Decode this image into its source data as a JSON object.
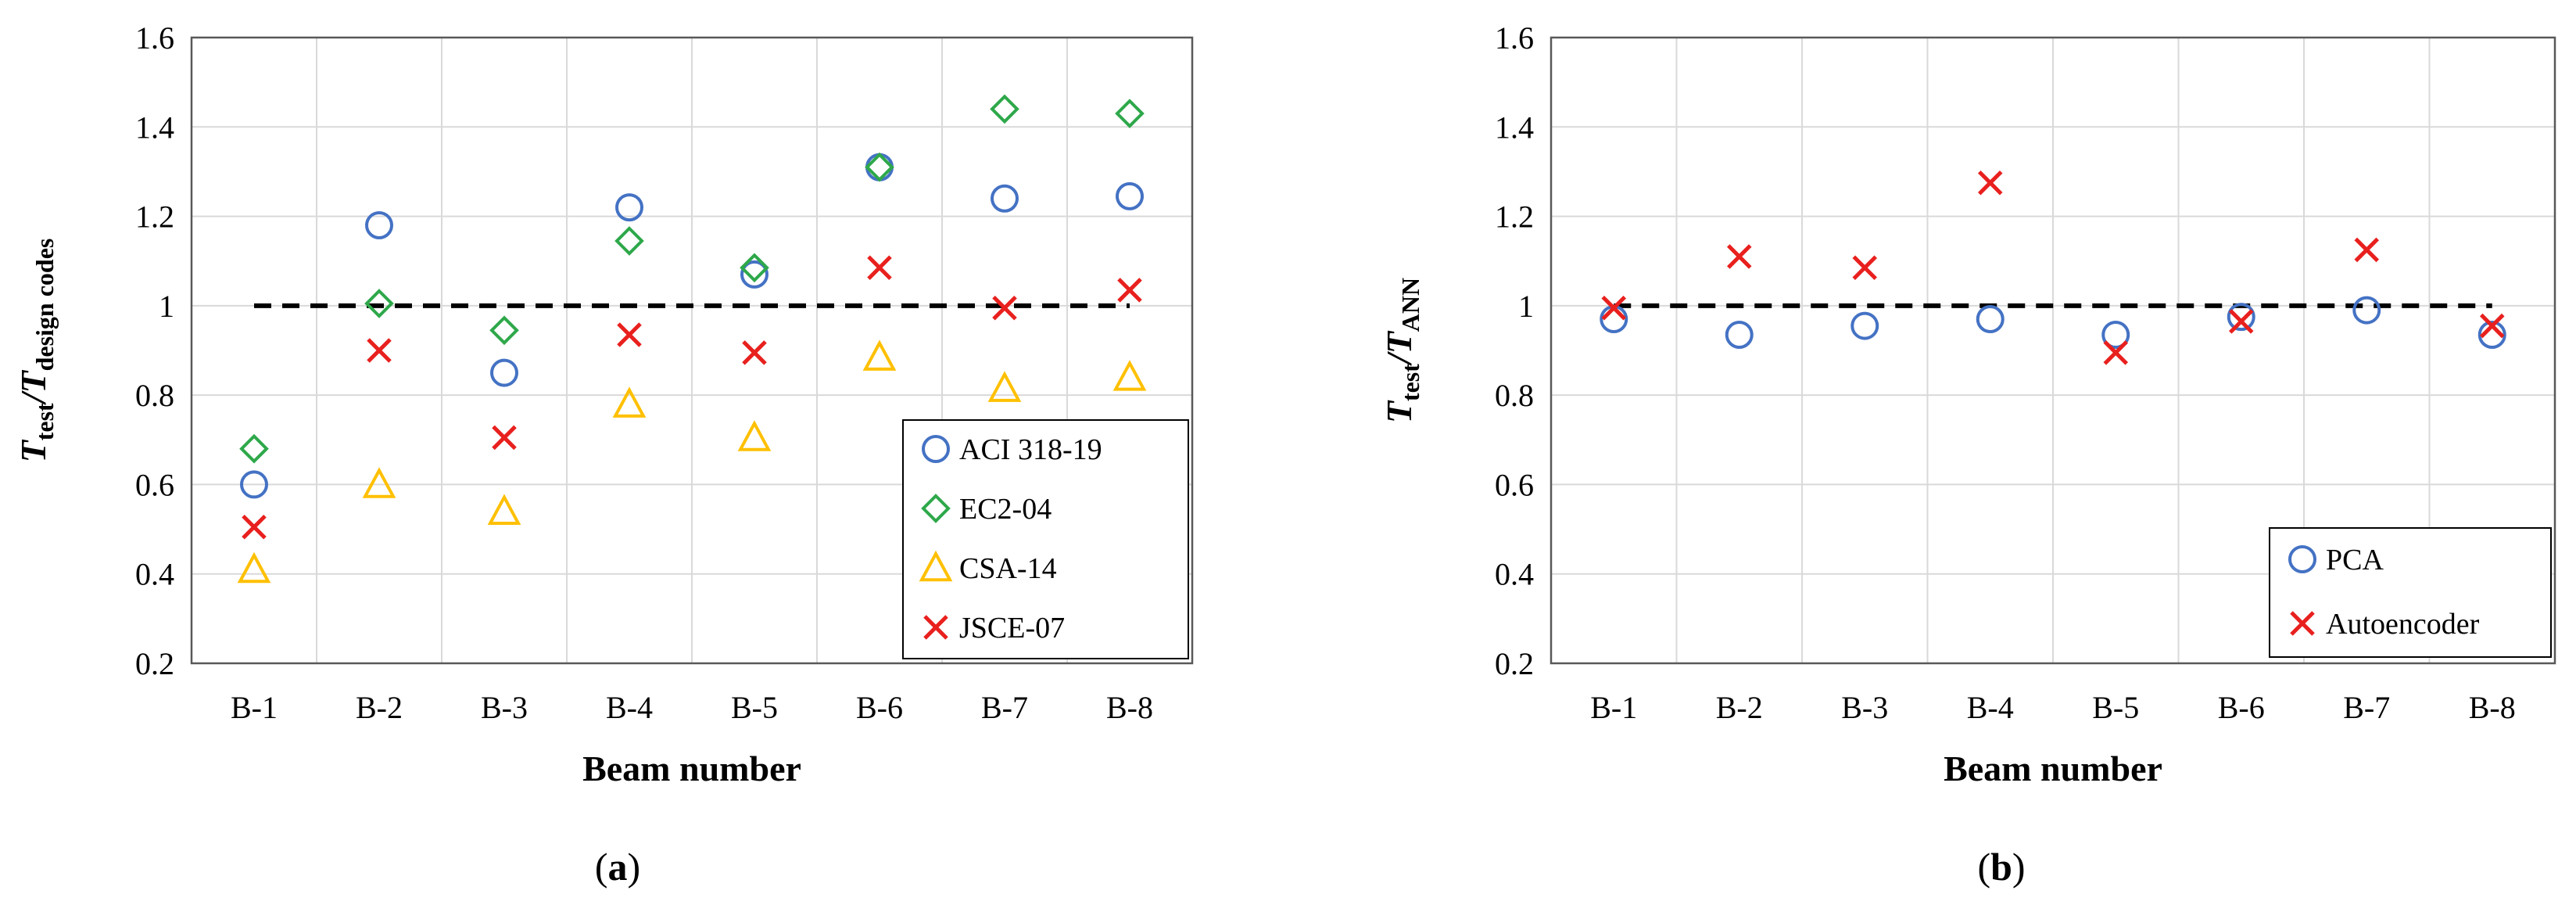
{
  "chart_data": [
    {
      "type": "scatter",
      "panel_label": {
        "open": "(",
        "letter": "a",
        "close": ")"
      },
      "xlabel": "Beam number",
      "ylabel": {
        "main": "T",
        "sub1": "test",
        "slash": "/",
        "main2": "T",
        "sub2": "design codes"
      },
      "categories": [
        "B-1",
        "B-2",
        "B-3",
        "B-4",
        "B-5",
        "B-6",
        "B-7",
        "B-8"
      ],
      "ylim": [
        0.2,
        1.6
      ],
      "yticks": [
        "0.2",
        "0.4",
        "0.6",
        "0.8",
        "1",
        "1.2",
        "1.4",
        "1.6"
      ],
      "grid": true,
      "reference_line": {
        "y": 1.0,
        "style": "dashed",
        "x_from": "B-1",
        "x_to": "B-8"
      },
      "legend_position": "bottom-right",
      "series": [
        {
          "name": "ACI 318-19",
          "marker": "circle",
          "color": "#4472C4",
          "values": [
            0.6,
            1.18,
            0.85,
            1.22,
            1.07,
            1.31,
            1.24,
            1.245
          ]
        },
        {
          "name": "EC2-04",
          "marker": "diamond",
          "color": "#2EA84A",
          "values": [
            0.68,
            1.005,
            0.945,
            1.145,
            1.085,
            1.31,
            1.44,
            1.43
          ]
        },
        {
          "name": "CSA-14",
          "marker": "triangle",
          "color": "#FFC000",
          "values": [
            0.41,
            0.6,
            0.54,
            0.78,
            0.705,
            0.885,
            0.815,
            0.84
          ]
        },
        {
          "name": "JSCE-07",
          "marker": "x",
          "color": "#E8201E",
          "values": [
            0.505,
            0.9,
            0.705,
            0.935,
            0.895,
            1.085,
            0.995,
            1.035
          ]
        }
      ]
    },
    {
      "type": "scatter",
      "panel_label": {
        "open": "(",
        "letter": "b",
        "close": ")"
      },
      "xlabel": "Beam number",
      "ylabel": {
        "main": "T",
        "sub1": "test",
        "slash": "/",
        "main2": "T",
        "sub2": "ANN"
      },
      "categories": [
        "B-1",
        "B-2",
        "B-3",
        "B-4",
        "B-5",
        "B-6",
        "B-7",
        "B-8"
      ],
      "ylim": [
        0.2,
        1.6
      ],
      "yticks": [
        "0.2",
        "0.4",
        "0.6",
        "0.8",
        "1",
        "1.2",
        "1.4",
        "1.6"
      ],
      "grid": true,
      "reference_line": {
        "y": 1.0,
        "style": "dashed",
        "x_from": "B-1",
        "x_to": "B-8"
      },
      "legend_position": "bottom-right",
      "series": [
        {
          "name": "PCA",
          "marker": "circle",
          "color": "#4472C4",
          "values": [
            0.97,
            0.935,
            0.955,
            0.97,
            0.935,
            0.975,
            0.99,
            0.935
          ]
        },
        {
          "name": "Autoencoder",
          "marker": "x",
          "color": "#E8201E",
          "values": [
            0.995,
            1.11,
            1.085,
            1.275,
            0.895,
            0.965,
            1.125,
            0.955
          ]
        }
      ]
    }
  ]
}
